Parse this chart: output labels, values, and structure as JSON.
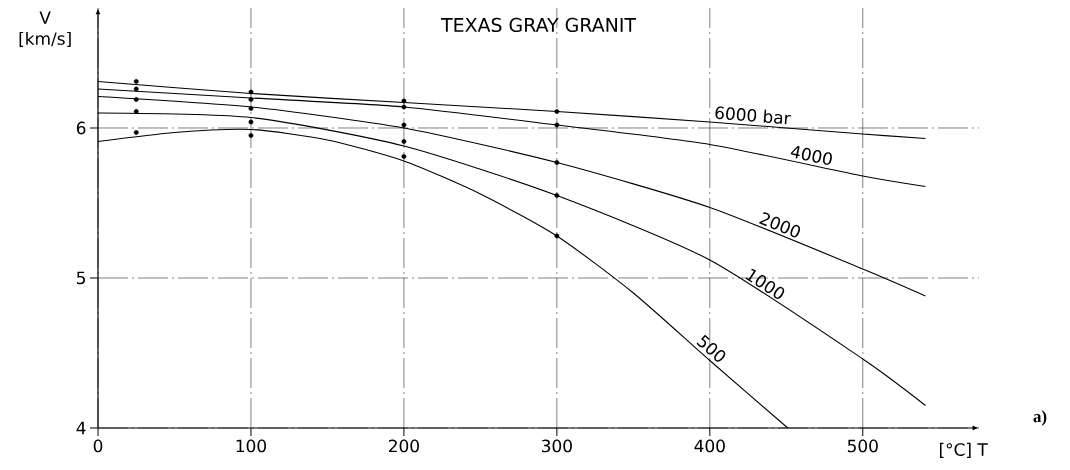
{
  "chart_data": {
    "type": "line",
    "title": "TEXAS GRAY GRANIT",
    "xlabel": "[°C] T",
    "ylabel": "V [km/s]",
    "xlim": [
      0,
      576
    ],
    "ylim": [
      4,
      6.8
    ],
    "xticks": [
      0,
      100,
      200,
      300,
      400,
      500
    ],
    "yticks": [
      4,
      5,
      6
    ],
    "grid": true,
    "series": [
      {
        "name": "6000 bar",
        "color": "#000000",
        "marker": "none",
        "x": [
          0,
          100,
          200,
          300,
          400,
          500,
          541
        ],
        "values": [
          6.31,
          6.23,
          6.17,
          6.11,
          6.04,
          5.96,
          5.93
        ]
      },
      {
        "name": "4000",
        "color": "#000000",
        "marker": "none",
        "x": [
          0,
          100,
          200,
          300,
          400,
          500,
          541
        ],
        "values": [
          6.26,
          6.2,
          6.14,
          6.02,
          5.89,
          5.68,
          5.61
        ]
      },
      {
        "name": "2000",
        "color": "#000000",
        "marker": "none",
        "x": [
          0,
          100,
          200,
          300,
          400,
          500,
          541
        ],
        "values": [
          6.21,
          6.14,
          6.0,
          5.77,
          5.47,
          5.06,
          4.88
        ]
      },
      {
        "name": "1000",
        "color": "#000000",
        "marker": "none",
        "x": [
          0,
          100,
          200,
          300,
          400,
          500,
          541
        ],
        "values": [
          6.1,
          6.07,
          5.88,
          5.55,
          5.12,
          4.46,
          4.15
        ]
      },
      {
        "name": "500",
        "color": "#000000",
        "marker": "none",
        "x": [
          0,
          50,
          100,
          150,
          200,
          250,
          300,
          350,
          400,
          451
        ],
        "values": [
          5.91,
          5.97,
          5.99,
          5.92,
          5.78,
          5.56,
          5.28,
          4.9,
          4.45,
          4.0
        ]
      },
      {
        "type": "scatter",
        "color": "#000000",
        "marker": "circle",
        "x": [
          25,
          25,
          25,
          25,
          25,
          100,
          100,
          100,
          100,
          100,
          200,
          200,
          200,
          200,
          200,
          300,
          300,
          300,
          300,
          300
        ],
        "values": [
          6.31,
          6.26,
          6.19,
          6.11,
          5.97,
          6.24,
          6.19,
          6.13,
          6.04,
          5.95,
          6.18,
          6.14,
          6.02,
          5.91,
          5.81,
          6.11,
          6.02,
          5.77,
          5.55,
          5.28
        ]
      }
    ],
    "annotations": [
      "a)"
    ]
  }
}
